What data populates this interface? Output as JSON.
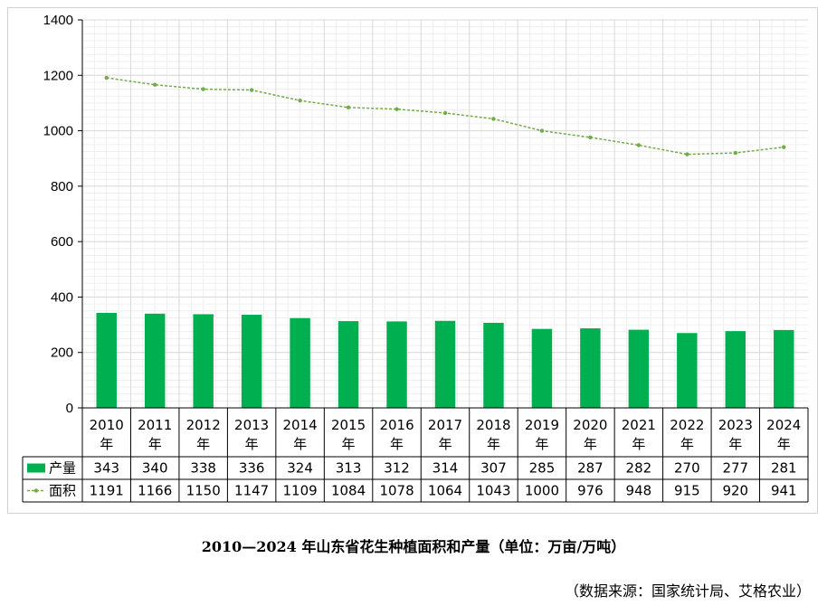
{
  "chart_data": {
    "type": "bar+line",
    "categories": [
      "2010年",
      "2011年",
      "2012年",
      "2013年",
      "2014年",
      "2015年",
      "2016年",
      "2017年",
      "2018年",
      "2019年",
      "2020年",
      "2021年",
      "2022年",
      "2023年",
      "2024年"
    ],
    "category_labels": [
      [
        "2010",
        "年"
      ],
      [
        "2011",
        "年"
      ],
      [
        "2012",
        "年"
      ],
      [
        "2013",
        "年"
      ],
      [
        "2014",
        "年"
      ],
      [
        "2015",
        "年"
      ],
      [
        "2016",
        "年"
      ],
      [
        "2017",
        "年"
      ],
      [
        "2018",
        "年"
      ],
      [
        "2019",
        "年"
      ],
      [
        "2020",
        "年"
      ],
      [
        "2021",
        "年"
      ],
      [
        "2022",
        "年"
      ],
      [
        "2023",
        "年"
      ],
      [
        "2024",
        "年"
      ]
    ],
    "series": [
      {
        "name": "产量",
        "kind": "bar",
        "color": "#00b050",
        "values": [
          343,
          340,
          338,
          336,
          324,
          313,
          312,
          314,
          307,
          285,
          287,
          282,
          270,
          277,
          281
        ]
      },
      {
        "name": "面积",
        "kind": "line",
        "color": "#70ad47",
        "dash": true,
        "markers": true,
        "values": [
          1191,
          1166,
          1150,
          1147,
          1109,
          1084,
          1078,
          1064,
          1043,
          1000,
          976,
          948,
          915,
          920,
          941
        ]
      }
    ],
    "ylim": [
      0,
      1400
    ],
    "yticks": [
      0,
      200,
      400,
      600,
      800,
      1000,
      1200,
      1400
    ],
    "grid": true,
    "legend": "data-table",
    "title": "2010—2024 年山东省花生种植面积和产量（单位：万亩/万吨）"
  },
  "caption": "2010—2024 年山东省花生种植面积和产量（单位：万亩/万吨）",
  "source": "（数据来源：国家统计局、艾格农业）"
}
